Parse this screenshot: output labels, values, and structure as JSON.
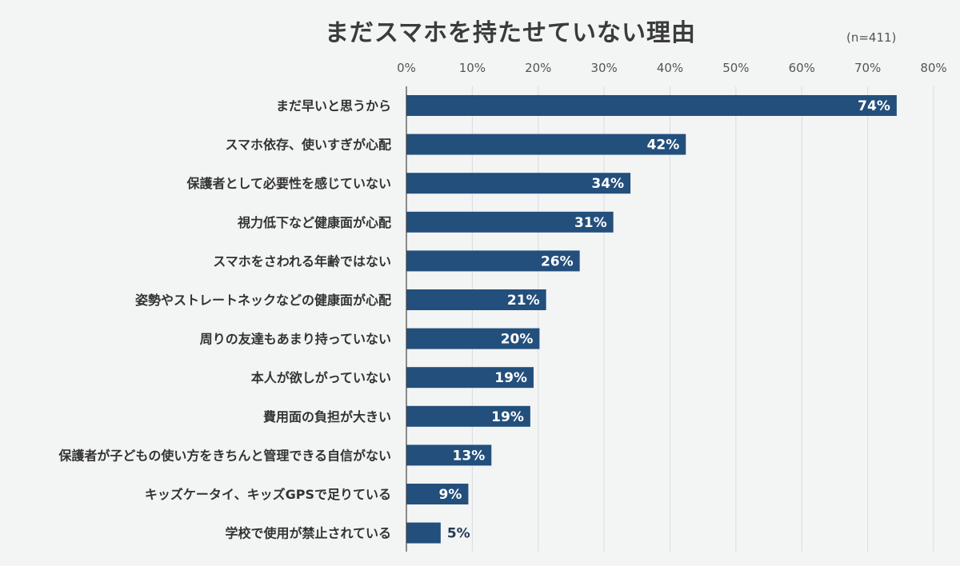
{
  "chart_data": {
    "type": "bar",
    "orientation": "horizontal",
    "title": "まだスマホを持たせていない理由",
    "note": "(n=411)",
    "xlim": [
      0,
      80
    ],
    "x_ticks": [
      0,
      10,
      20,
      30,
      40,
      50,
      60,
      70,
      80
    ],
    "x_tick_labels": [
      "0%",
      "10%",
      "20%",
      "30%",
      "40%",
      "50%",
      "60%",
      "70%",
      "80%"
    ],
    "grid": true,
    "legend": "none",
    "categories": [
      "まだ早いと思うから",
      "スマホ依存、使いすぎが心配",
      "保護者として必要性を感じていない",
      "視力低下など健康面が心配",
      "スマホをさわれる年齢ではない",
      "姿勢やストレートネックなどの健康面が心配",
      "周りの友達もあまり持っていない",
      "本人が欲しがっていない",
      "費用面の負担が大きい",
      "保護者が子どもの使い方をきちんと管理できる自信がない",
      "キッズケータイ、キッズGPSで足りている",
      "学校で使用が禁止されている"
    ],
    "values": [
      74.4,
      42.4,
      34.0,
      31.4,
      26.3,
      21.2,
      20.2,
      19.3,
      18.8,
      12.9,
      9.4,
      5.2
    ],
    "value_labels": [
      "74%",
      "42%",
      "34%",
      "31%",
      "26%",
      "21%",
      "20%",
      "19%",
      "19%",
      "13%",
      "9%",
      "5%"
    ],
    "bar_color": "#234f7c"
  }
}
